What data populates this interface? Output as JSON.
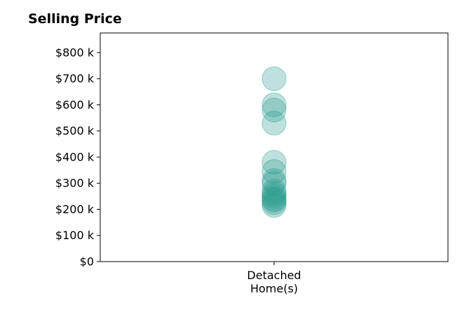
{
  "chart_data": {
    "type": "scatter",
    "title": "Selling Price",
    "xlabel": "",
    "ylabel": "",
    "categories": [
      "Detached\nHome(s)"
    ],
    "y_ticks": [
      "$0",
      "$100 k",
      "$200 k",
      "$300 k",
      "$400 k",
      "$500 k",
      "$600 k",
      "$700 k",
      "$800 k"
    ],
    "ylim": [
      0,
      875000
    ],
    "grid": false,
    "legend": "none",
    "marker_color": "#2a9d8f",
    "marker_opacity": 0.3,
    "series": [
      {
        "category": "Detached\nHome(s)",
        "values": [
          700000,
          600000,
          580000,
          530000,
          380000,
          345000,
          310000,
          300000,
          270000,
          260000,
          250000,
          240000,
          235000,
          225000,
          215000
        ]
      }
    ]
  }
}
